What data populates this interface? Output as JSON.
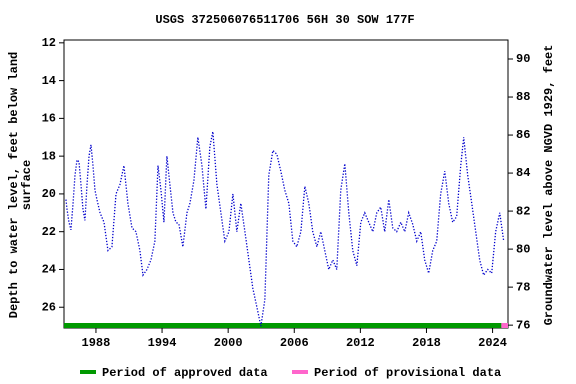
{
  "chart_data": {
    "type": "line",
    "title": "USGS 372506076511706 56H 30 SOW 177F",
    "ylabel": [
      "Depth to water level, feet below land",
      "surface"
    ],
    "y2label": "Groundwater level above NGVD 1929, feet",
    "xlim": [
      1985.1,
      2025.4
    ],
    "ylim": [
      27.1,
      11.85
    ],
    "y2lim": [
      75.85,
      91.0
    ],
    "xticks": [
      1988,
      1994,
      2000,
      2006,
      2012,
      2018,
      2024
    ],
    "yticks": [
      12,
      14,
      16,
      18,
      20,
      22,
      24,
      26
    ],
    "y2ticks": [
      76,
      78,
      80,
      82,
      84,
      86,
      88,
      90
    ],
    "series": [
      {
        "color": "#0000cc",
        "x": [
          1985.28,
          1985.37,
          1985.55,
          1985.73,
          1985.92,
          1986.1,
          1986.28,
          1986.46,
          1986.64,
          1986.82,
          1987.0,
          1987.19,
          1987.37,
          1987.55,
          1987.73,
          1987.91,
          1988.09,
          1988.37,
          1988.73,
          1989.09,
          1989.45,
          1989.82,
          1990.18,
          1990.54,
          1990.9,
          1991.27,
          1991.63,
          1991.99,
          1992.27,
          1992.63,
          1992.99,
          1993.35,
          1993.63,
          1993.9,
          1994.17,
          1994.44,
          1994.71,
          1994.99,
          1995.26,
          1995.53,
          1995.89,
          1996.26,
          1996.53,
          1996.89,
          1997.25,
          1997.62,
          1997.98,
          1998.34,
          1998.61,
          1998.98,
          1999.34,
          1999.7,
          2000.07,
          2000.43,
          2000.79,
          2001.15,
          2001.52,
          2001.88,
          2002.24,
          2002.61,
          2002.97,
          2003.33,
          2003.69,
          2004.06,
          2004.42,
          2004.78,
          2005.14,
          2005.51,
          2005.87,
          2006.23,
          2006.6,
          2006.96,
          2007.32,
          2007.68,
          2008.05,
          2008.41,
          2008.77,
          2009.13,
          2009.5,
          2009.86,
          2010.22,
          2010.59,
          2010.95,
          2011.31,
          2011.68,
          2012.04,
          2012.4,
          2012.76,
          2013.13,
          2013.49,
          2013.85,
          2014.21,
          2014.58,
          2014.94,
          2015.3,
          2015.67,
          2016.03,
          2016.39,
          2016.75,
          2017.12,
          2017.48,
          2017.84,
          2018.2,
          2018.57,
          2018.93,
          2019.29,
          2019.66,
          2020.02,
          2020.38,
          2020.74,
          2021.11,
          2021.38,
          2021.74,
          2022.11,
          2022.47,
          2022.83,
          2023.19,
          2023.56,
          2023.92,
          2024.28,
          2024.65,
          2025.01
        ],
        "values": [
          20.3,
          20.8,
          21.5,
          21.9,
          20.5,
          19.0,
          18.2,
          18.3,
          19.5,
          20.8,
          21.4,
          19.5,
          18.0,
          17.4,
          18.5,
          19.8,
          20.3,
          21.0,
          21.5,
          23.0,
          22.8,
          20.0,
          19.5,
          18.5,
          20.5,
          21.8,
          22.0,
          23.0,
          24.3,
          24.0,
          23.5,
          22.5,
          18.5,
          19.8,
          21.5,
          18.0,
          19.5,
          21.0,
          21.5,
          21.6,
          22.8,
          21.0,
          20.5,
          19.3,
          17.0,
          18.5,
          20.8,
          17.5,
          16.7,
          19.5,
          21.0,
          22.5,
          22.0,
          20.0,
          22.0,
          20.5,
          22.0,
          23.5,
          25.0,
          26.0,
          27.0,
          25.6,
          19.0,
          17.7,
          17.9,
          18.8,
          19.8,
          20.5,
          22.5,
          22.8,
          22.0,
          19.6,
          20.5,
          22.0,
          22.8,
          22.0,
          23.0,
          24.0,
          23.5,
          24.0,
          19.8,
          18.4,
          21.0,
          23.0,
          23.8,
          21.5,
          21.0,
          21.5,
          22.0,
          21.0,
          20.7,
          22.0,
          20.3,
          21.8,
          22.0,
          21.5,
          22.0,
          21.0,
          21.6,
          22.5,
          22.0,
          23.5,
          24.2,
          23.0,
          22.5,
          20.0,
          18.8,
          20.5,
          21.5,
          21.2,
          18.5,
          17.0,
          19.0,
          20.5,
          22.0,
          23.5,
          24.3,
          24.0,
          24.2,
          22.0,
          21.0,
          22.5
        ]
      }
    ],
    "periods": [
      {
        "name": "Period of approved data",
        "color": "#009900",
        "start": 1985.1,
        "end": 2024.8
      },
      {
        "name": "Period of provisional data",
        "color": "#ff66cc",
        "start": 2024.8,
        "end": 2025.4
      }
    ]
  }
}
